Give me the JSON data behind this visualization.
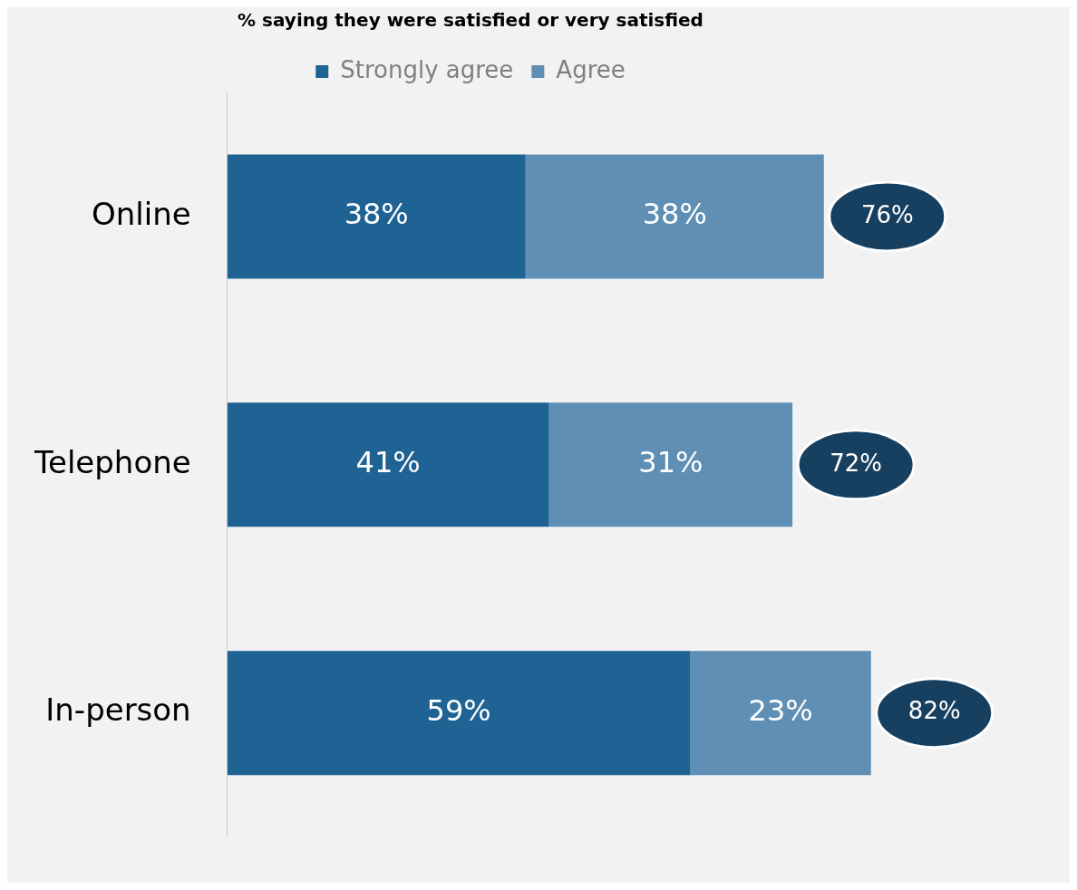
{
  "chart_data": {
    "type": "bar",
    "orientation": "horizontal",
    "stacked": true,
    "title": "% saying they were satisfied or very satisfied",
    "categories": [
      "Online",
      "Telephone",
      "In-person"
    ],
    "series": [
      {
        "name": "Strongly agree",
        "color": "#1f6294",
        "values": [
          38,
          41,
          59
        ],
        "value_labels": [
          "38%",
          "41%",
          "59%"
        ]
      },
      {
        "name": "Agree",
        "color": "#5f8fb4",
        "values": [
          38,
          31,
          23
        ],
        "value_labels": [
          "38%",
          "31%",
          "23%"
        ]
      }
    ],
    "totals": [
      "76%",
      "72%",
      "82%"
    ],
    "legend": "top",
    "grid": false
  }
}
